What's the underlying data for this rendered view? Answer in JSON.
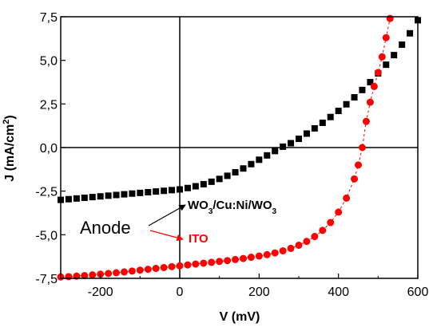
{
  "chart_data": {
    "type": "scatter",
    "xlabel": "V (mV)",
    "ylabel": "J (mA/cm2)",
    "xlim": [
      -300,
      600
    ],
    "ylim": [
      -7.5,
      7.5
    ],
    "x_ticks": [
      -200,
      0,
      200,
      400,
      600
    ],
    "x_tick_labels": [
      "-200",
      "0",
      "200",
      "400",
      "600"
    ],
    "y_ticks": [
      -7.5,
      -5.0,
      -2.5,
      0.0,
      2.5,
      5.0,
      7.5
    ],
    "y_tick_labels": [
      "-7,5",
      "-5,0",
      "-2,5",
      "0,0",
      "2,5",
      "5,0",
      "7,5"
    ],
    "reference_lines": {
      "x": 0,
      "y": 0
    },
    "grid": false,
    "series": [
      {
        "name": "WO3/Cu:Ni/WO3",
        "color": "#000000",
        "marker": "square",
        "x": [
          -300,
          -280,
          -260,
          -240,
          -220,
          -200,
          -180,
          -160,
          -140,
          -120,
          -100,
          -80,
          -60,
          -40,
          -20,
          0,
          20,
          40,
          60,
          80,
          100,
          120,
          140,
          160,
          180,
          200,
          220,
          240,
          260,
          280,
          300,
          320,
          340,
          360,
          380,
          400,
          420,
          440,
          460,
          480,
          500,
          520,
          540,
          560,
          580,
          600
        ],
        "y": [
          -3.0,
          -2.96,
          -2.92,
          -2.88,
          -2.84,
          -2.8,
          -2.76,
          -2.72,
          -2.68,
          -2.64,
          -2.6,
          -2.56,
          -2.52,
          -2.48,
          -2.44,
          -2.4,
          -2.32,
          -2.22,
          -2.1,
          -1.96,
          -1.8,
          -1.62,
          -1.42,
          -1.2,
          -0.95,
          -0.7,
          -0.45,
          -0.2,
          0.05,
          0.25,
          0.5,
          0.8,
          1.1,
          1.42,
          1.75,
          2.1,
          2.48,
          2.88,
          3.3,
          3.75,
          4.25,
          4.75,
          5.3,
          5.9,
          6.55,
          7.3
        ]
      },
      {
        "name": "ITO",
        "color": "#ff0000",
        "marker": "circle",
        "x": [
          -300,
          -280,
          -260,
          -240,
          -220,
          -200,
          -180,
          -160,
          -140,
          -120,
          -100,
          -80,
          -60,
          -40,
          -20,
          0,
          20,
          40,
          60,
          80,
          100,
          120,
          140,
          160,
          180,
          200,
          220,
          240,
          260,
          280,
          300,
          320,
          340,
          360,
          380,
          400,
          420,
          440,
          450,
          460,
          470,
          480,
          490,
          500,
          510,
          520,
          530
        ],
        "y": [
          -7.42,
          -7.4,
          -7.37,
          -7.34,
          -7.3,
          -7.26,
          -7.22,
          -7.18,
          -7.13,
          -7.08,
          -7.03,
          -6.98,
          -6.93,
          -6.88,
          -6.83,
          -6.78,
          -6.73,
          -6.68,
          -6.63,
          -6.58,
          -6.53,
          -6.48,
          -6.42,
          -6.36,
          -6.29,
          -6.22,
          -6.14,
          -6.04,
          -5.92,
          -5.78,
          -5.6,
          -5.38,
          -5.1,
          -4.75,
          -4.3,
          -3.7,
          -2.9,
          -1.8,
          -1.0,
          0.0,
          1.5,
          2.6,
          3.5,
          4.3,
          5.2,
          6.3,
          7.4
        ]
      }
    ],
    "annotations": {
      "anode": "Anode",
      "wo3_label": "WO3/Cu:Ni/WO3",
      "ito_label": "ITO"
    }
  }
}
